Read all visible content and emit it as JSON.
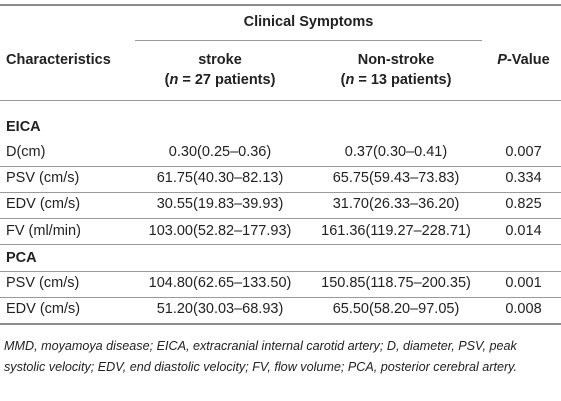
{
  "table": {
    "group_header": "Clinical Symptoms",
    "header": {
      "characteristics": "Characteristics",
      "stroke_line1": "stroke",
      "stroke_line2_open": "(",
      "stroke_line2_n": "n",
      "stroke_line2_rest": " = 27 patients)",
      "nonstroke_line1": "Non-stroke",
      "nonstroke_line2_open": "(",
      "nonstroke_line2_n": "n",
      "nonstroke_line2_rest": " = 13 patients)",
      "pvalue_p": "P",
      "pvalue_rest": "-Value"
    },
    "sections": [
      {
        "title": "EICA",
        "rows": [
          {
            "label": "D(cm)",
            "stroke": "0.30(0.25–0.36)",
            "nonstroke": "0.37(0.30–0.41)",
            "p": "0.007"
          },
          {
            "label": "PSV (cm/s)",
            "stroke": "61.75(40.30–82.13)",
            "nonstroke": "65.75(59.43–73.83)",
            "p": "0.334"
          },
          {
            "label": "EDV (cm/s)",
            "stroke": "30.55(19.83–39.93)",
            "nonstroke": "31.70(26.33–36.20)",
            "p": "0.825"
          },
          {
            "label": "FV (ml/min)",
            "stroke": "103.00(52.82–177.93)",
            "nonstroke": "161.36(119.27–228.71)",
            "p": "0.014"
          }
        ]
      },
      {
        "title": "PCA",
        "rows": [
          {
            "label": "PSV (cm/s)",
            "stroke": "104.80(62.65–133.50)",
            "nonstroke": "150.85(118.75–200.35)",
            "p": "0.001"
          },
          {
            "label": "EDV (cm/s)",
            "stroke": "51.20(30.03–68.93)",
            "nonstroke": "65.50(58.20–97.05)",
            "p": "0.008"
          }
        ]
      }
    ],
    "footnote": "MMD, moyamoya disease; EICA, extracranial internal carotid artery; D, diameter, PSV, peak systolic velocity; EDV, end diastolic velocity; FV, flow volume; PCA, posterior cerebral artery."
  }
}
